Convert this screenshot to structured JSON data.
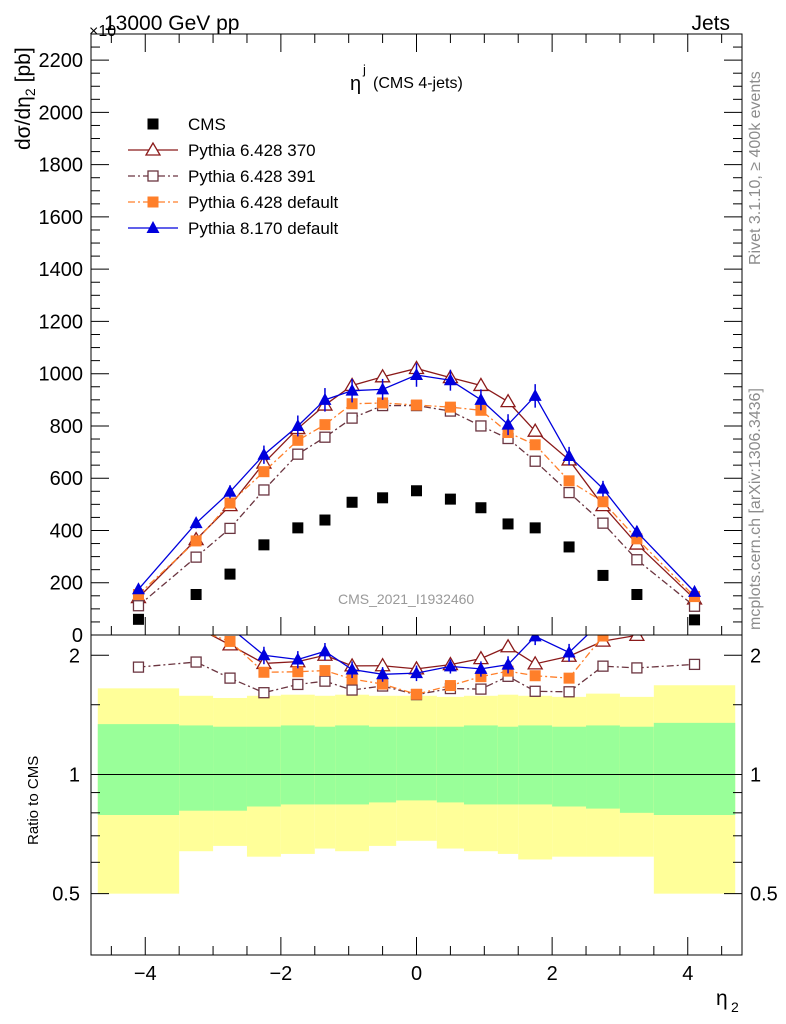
{
  "header": {
    "left": "13000 GeV pp",
    "right": "Jets",
    "multiplier": "×10"
  },
  "side_labels": {
    "rivet": "Rivet 3.1.10, ≥ 400k events",
    "mcplots": "mcplots.cern.ch [arXiv:1306.3436]"
  },
  "chart_data": {
    "type": "scatter",
    "title_main": "η",
    "title_sup": "j",
    "title_sub": "(CMS 4-jets)",
    "watermark": "CMS_2021_I1932460",
    "xlabel": "η",
    "xlabel_sub": "2",
    "ylabel_main": "dσ/dη",
    "ylabel_sub": "2",
    "ylabel_unit": "[pb]",
    "ratio_ylabel": "Ratio to CMS",
    "xlim": [
      -4.8,
      4.8
    ],
    "ylim": [
      0,
      2300
    ],
    "ratio_ylim": [
      0.35,
      2.25
    ],
    "x_ticks": [
      -4,
      -2,
      0,
      2,
      4
    ],
    "x_tick_labels": [
      "−4",
      "−2",
      "0",
      "2",
      "4"
    ],
    "y_ticks": [
      0,
      200,
      400,
      600,
      800,
      1000,
      1200,
      1400,
      1600,
      1800,
      2000,
      2200
    ],
    "y_tick_labels": [
      "0",
      "200",
      "400",
      "600",
      "800",
      "1000",
      "1200",
      "1400",
      "1600",
      "1800",
      "2000",
      "2200"
    ],
    "ratio_ticks": [
      0.5,
      1,
      2
    ],
    "ratio_tick_labels": [
      "0.5",
      "1",
      "2"
    ],
    "bin_edges": [
      -4.7,
      -3.5,
      -3.0,
      -2.5,
      -2.0,
      -1.5,
      -1.2,
      -0.7,
      -0.3,
      0.3,
      0.7,
      1.2,
      1.5,
      2.0,
      2.5,
      3.0,
      3.5,
      4.7
    ],
    "x": [
      -4.1,
      -3.25,
      -2.75,
      -2.25,
      -1.75,
      -1.35,
      -0.95,
      -0.5,
      0.0,
      0.5,
      0.95,
      1.35,
      1.75,
      2.25,
      2.75,
      3.25,
      4.1
    ],
    "series": [
      {
        "name": "CMS",
        "color": "#000000",
        "marker": "square-filled",
        "line": "none",
        "values": [
          60,
          155,
          233,
          345,
          410,
          440,
          508,
          525,
          552,
          520,
          487,
          425,
          410,
          337,
          228,
          155,
          58
        ]
      },
      {
        "name": "Pythia 6.428 370",
        "color": "#8b1a1a",
        "marker": "triangle-open",
        "line": "solid",
        "values": [
          143,
          365,
          495,
          658,
          790,
          880,
          955,
          988,
          1020,
          985,
          955,
          893,
          780,
          670,
          495,
          348,
          138
        ]
      },
      {
        "name": "Pythia 6.428 391",
        "color": "#6b3540",
        "marker": "square-open",
        "line": "dashdot",
        "values": [
          112,
          298,
          408,
          555,
          692,
          757,
          830,
          878,
          878,
          857,
          800,
          752,
          665,
          545,
          428,
          288,
          110
        ]
      },
      {
        "name": "Pythia 6.428 default",
        "color": "#ff7f2a",
        "marker": "square-filled",
        "line": "dashdot",
        "values": [
          155,
          360,
          505,
          625,
          745,
          805,
          885,
          888,
          880,
          872,
          860,
          775,
          728,
          590,
          510,
          368,
          147
        ]
      },
      {
        "name": "Pythia 8.170 default",
        "color": "#0000dd",
        "marker": "triangle-filled",
        "line": "solid",
        "values": [
          175,
          428,
          548,
          690,
          800,
          900,
          935,
          940,
          995,
          975,
          900,
          805,
          915,
          685,
          560,
          395,
          165
        ],
        "errors": [
          10,
          20,
          25,
          35,
          40,
          45,
          45,
          40,
          45,
          40,
          40,
          40,
          45,
          35,
          30,
          22,
          10
        ]
      }
    ],
    "ratio_band_inner": [
      [
        0.79,
        1.34
      ],
      [
        0.81,
        1.33
      ],
      [
        0.81,
        1.32
      ],
      [
        0.83,
        1.32
      ],
      [
        0.84,
        1.33
      ],
      [
        0.84,
        1.32
      ],
      [
        0.84,
        1.33
      ],
      [
        0.85,
        1.32
      ],
      [
        0.86,
        1.32
      ],
      [
        0.85,
        1.32
      ],
      [
        0.84,
        1.33
      ],
      [
        0.84,
        1.32
      ],
      [
        0.84,
        1.33
      ],
      [
        0.83,
        1.32
      ],
      [
        0.82,
        1.33
      ],
      [
        0.8,
        1.32
      ],
      [
        0.79,
        1.35
      ]
    ],
    "ratio_band_outer": [
      [
        0.5,
        1.65
      ],
      [
        0.64,
        1.58
      ],
      [
        0.66,
        1.56
      ],
      [
        0.62,
        1.58
      ],
      [
        0.63,
        1.59
      ],
      [
        0.65,
        1.58
      ],
      [
        0.64,
        1.59
      ],
      [
        0.66,
        1.58
      ],
      [
        0.68,
        1.58
      ],
      [
        0.65,
        1.57
      ],
      [
        0.64,
        1.58
      ],
      [
        0.63,
        1.59
      ],
      [
        0.61,
        1.58
      ],
      [
        0.62,
        1.57
      ],
      [
        0.62,
        1.6
      ],
      [
        0.62,
        1.57
      ],
      [
        0.5,
        1.68
      ]
    ],
    "legend_position": "top-left",
    "band_colors": {
      "inner": "#99ff99",
      "outer": "#ffff99"
    }
  }
}
